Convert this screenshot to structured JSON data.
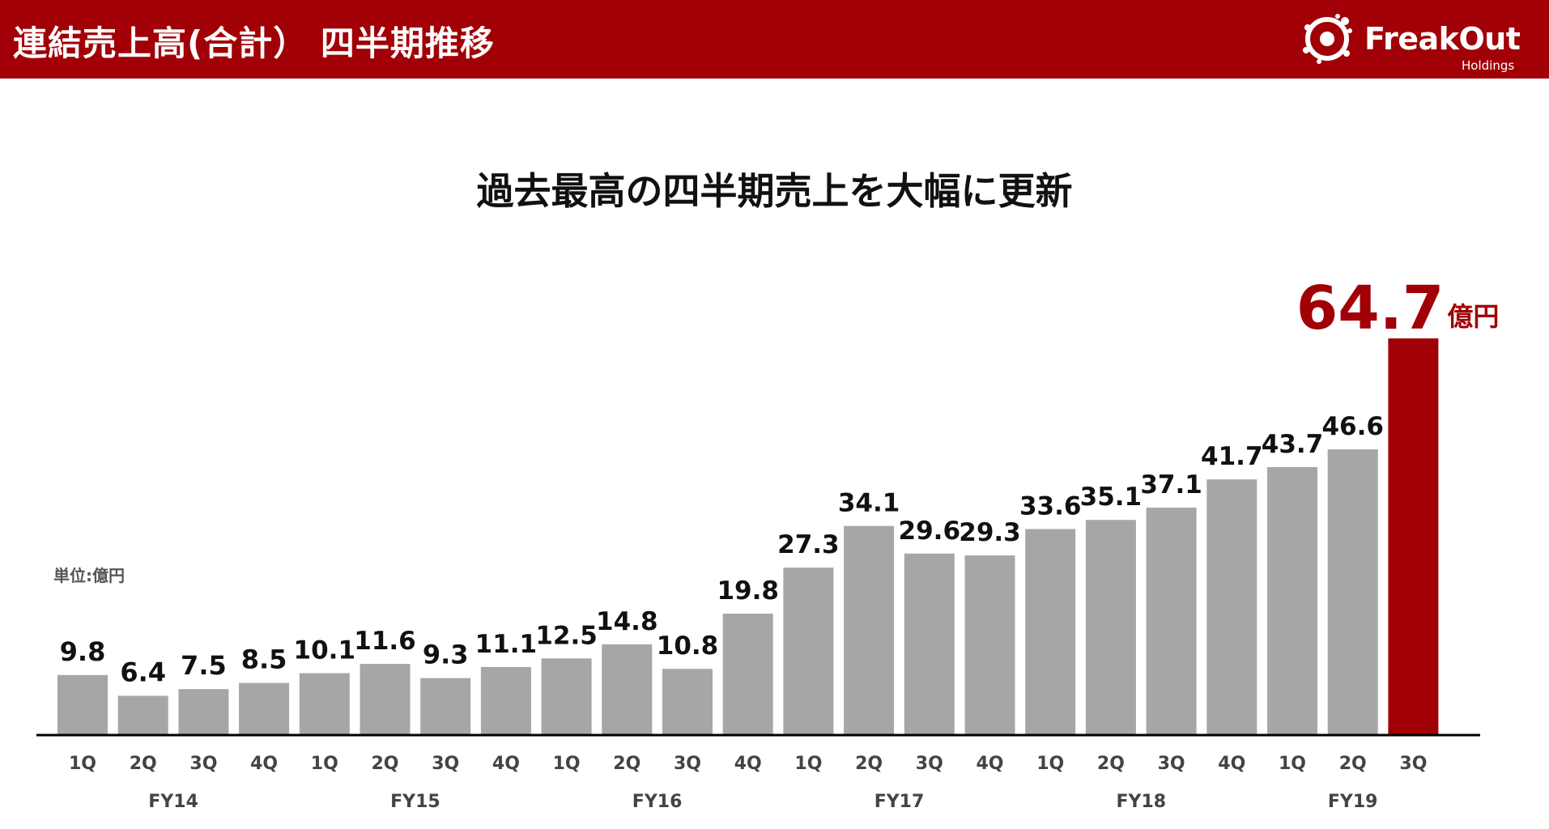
{
  "header": {
    "title": "連結売上高(合計） 四半期推移",
    "logo_name": "FreakOut",
    "logo_sub": "Holdings"
  },
  "headline": "過去最高の四半期売上を大幅に更新",
  "unit_label": "単位:億円",
  "colors": {
    "header_bg": "#a10006",
    "bar": "#a6a6a6",
    "highlight": "#a10006",
    "axis": "#000000"
  },
  "chart_data": {
    "type": "bar",
    "categories": [
      "1Q",
      "2Q",
      "3Q",
      "4Q",
      "1Q",
      "2Q",
      "3Q",
      "4Q",
      "1Q",
      "2Q",
      "3Q",
      "4Q",
      "1Q",
      "2Q",
      "3Q",
      "4Q",
      "1Q",
      "2Q",
      "3Q",
      "4Q",
      "1Q",
      "2Q",
      "3Q"
    ],
    "values": [
      9.8,
      6.4,
      7.5,
      8.5,
      10.1,
      11.6,
      9.3,
      11.1,
      12.5,
      14.8,
      10.8,
      19.8,
      27.3,
      34.1,
      29.6,
      29.3,
      33.6,
      35.1,
      37.1,
      41.7,
      43.7,
      46.6,
      64.7
    ],
    "value_labels": [
      "9.8",
      "6.4",
      "7.5",
      "8.5",
      "10.1",
      "11.6",
      "9.3",
      "11.1",
      "12.5",
      "14.8",
      "10.8",
      "19.8",
      "27.3",
      "34.1",
      "29.6",
      "29.3",
      "33.6",
      "35.1",
      "37.1",
      "41.7",
      "43.7",
      "46.6",
      "64.7"
    ],
    "fiscal_years": [
      {
        "label": "FY14",
        "start": 0,
        "end": 3
      },
      {
        "label": "FY15",
        "start": 4,
        "end": 7
      },
      {
        "label": "FY16",
        "start": 8,
        "end": 11
      },
      {
        "label": "FY17",
        "start": 12,
        "end": 15
      },
      {
        "label": "FY18",
        "start": 16,
        "end": 19
      },
      {
        "label": "FY19",
        "start": 20,
        "end": 22
      }
    ],
    "highlight_index": 22,
    "highlight_unit": "億円",
    "ylim": [
      0,
      66
    ],
    "grid": false,
    "legend": "none"
  }
}
